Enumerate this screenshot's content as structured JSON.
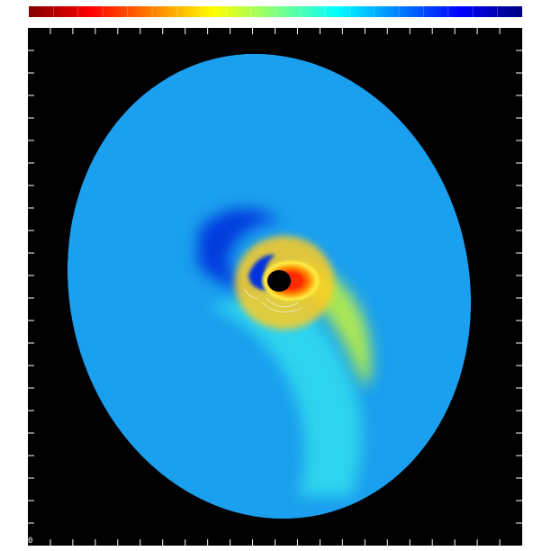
{
  "figure": {
    "origin_label": "0"
  },
  "colorbar": {
    "orientation": "horizontal",
    "stops": [
      "#800000",
      "#ff0000",
      "#ff8000",
      "#ffff00",
      "#80ff80",
      "#00ffff",
      "#0080ff",
      "#0000ff",
      "#000080"
    ]
  },
  "plot": {
    "background": "#000000",
    "frame_ticks": "white",
    "disk_colors": {
      "base": "#1aa0ee",
      "low": "#0033dd",
      "mid": "#33ddee",
      "warm": "#bbee44",
      "hot": "#ff2a00",
      "core": "#000000"
    }
  }
}
